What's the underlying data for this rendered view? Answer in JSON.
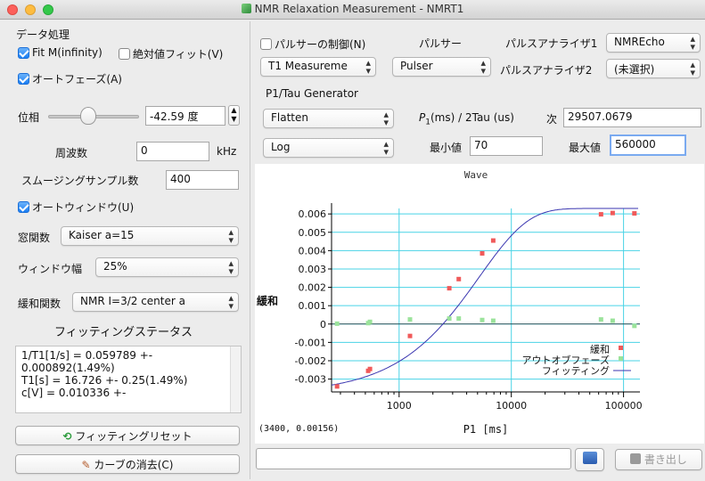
{
  "window": {
    "title": "NMR Relaxation Measurement - NMRT1"
  },
  "left": {
    "section_title": "データ処理",
    "fit_minf": {
      "label": "Fit M(infinity)",
      "checked": true
    },
    "abs_fit": {
      "label": "絶対値フィット(V)",
      "checked": false
    },
    "auto_phase": {
      "label": "オートフェーズ(A)",
      "checked": true
    },
    "phase_label": "位相",
    "phase_value": "-42.59 度",
    "freq_label": "周波数",
    "freq_value": "0",
    "freq_unit": "kHz",
    "smoothing_label": "スムージングサンプル数",
    "smoothing_value": "400",
    "auto_window": {
      "label": "オートウィンドウ(U)",
      "checked": true
    },
    "window_func_label": "窓関数",
    "window_func_value": "Kaiser a=15",
    "window_width_label": "ウィンドウ幅",
    "window_width_value": "25%",
    "relax_func_label": "緩和関数",
    "relax_func_value": "NMR I=3/2 center a",
    "fit_status_title": "フィッティングステータス",
    "fit_status_lines": [
      "1/T1[1/s] = 0.059789 +-",
      " 0.000892(1.49%)",
      "T1[s] = 16.726 +- 0.25(1.49%)",
      "c[V] = 0.010336 +-"
    ],
    "reset_button": "フィッティングリセット",
    "clear_button": "カーブの消去(C)"
  },
  "top": {
    "pulser_control": {
      "label": "パルサーの制御(N)",
      "checked": false
    },
    "pulser_label": "パルサー",
    "analyzer1_label": "パルスアナライザ1",
    "analyzer1_value": "NMREcho",
    "mode_value": "T1 Measureme",
    "pulser_value": "Pulser",
    "analyzer2_label": "パルスアナライザ2",
    "analyzer2_value": "(未選択)",
    "generator_title": "P1/Tau Generator",
    "flatten_value": "Flatten",
    "p1_label_prefix": "P",
    "p1_label_sub": "1",
    "p1_label_rest": "(ms) / 2Tau (us)",
    "next_label": "次",
    "next_value": "29507.0679",
    "log_value": "Log",
    "min_label": "最小値",
    "min_value": "70",
    "max_label": "最大値",
    "max_value": "560000"
  },
  "bottom": {
    "coord_readout": "(3400, 0.00156)",
    "command_input": "",
    "export_button": "書き出し"
  },
  "chart_data": {
    "type": "scatter",
    "title": "Wave",
    "xlabel": "P1 [ms]",
    "ylabel": "緩和",
    "xscale": "log",
    "xlim": [
      250,
      140000
    ],
    "ylim": [
      -0.0037,
      0.0063
    ],
    "y_ticks": [
      "0.006",
      "0.005",
      "0.004",
      "0.003",
      "0.002",
      "0.001",
      "0",
      "-0.001",
      "-0.002",
      "-0.003"
    ],
    "x_ticks": [
      "1000",
      "10000",
      "100000"
    ],
    "legend_position": "bottom-right",
    "grid": true,
    "colors": {
      "relax": "#f05a5a",
      "out_of_phase": "#9be39b",
      "fit": "#3a36b0",
      "grid": "#49d3e6"
    },
    "series": [
      {
        "name": "緩和",
        "x": [
          280,
          530,
          550,
          1250,
          2800,
          3400,
          5500,
          6900,
          63000,
          80000,
          125000
        ],
        "y": [
          -0.0034,
          -0.00255,
          -0.00245,
          -0.00065,
          0.00195,
          0.00245,
          0.00385,
          0.00455,
          0.00598,
          0.00605,
          0.00603
        ]
      },
      {
        "name": "アウトオブフェーズ",
        "x": [
          280,
          530,
          550,
          1250,
          2800,
          3400,
          5500,
          6900,
          63000,
          80000,
          125000
        ],
        "y": [
          2e-05,
          5e-05,
          0.00012,
          0.00025,
          0.0003,
          0.0003,
          0.00022,
          0.00018,
          0.00025,
          0.00018,
          -0.0001
        ]
      },
      {
        "name": "フィッティング",
        "type": "line",
        "curve": {
          "A": 0.0063,
          "B": 0.0101,
          "k": 0.000192
        }
      }
    ]
  }
}
